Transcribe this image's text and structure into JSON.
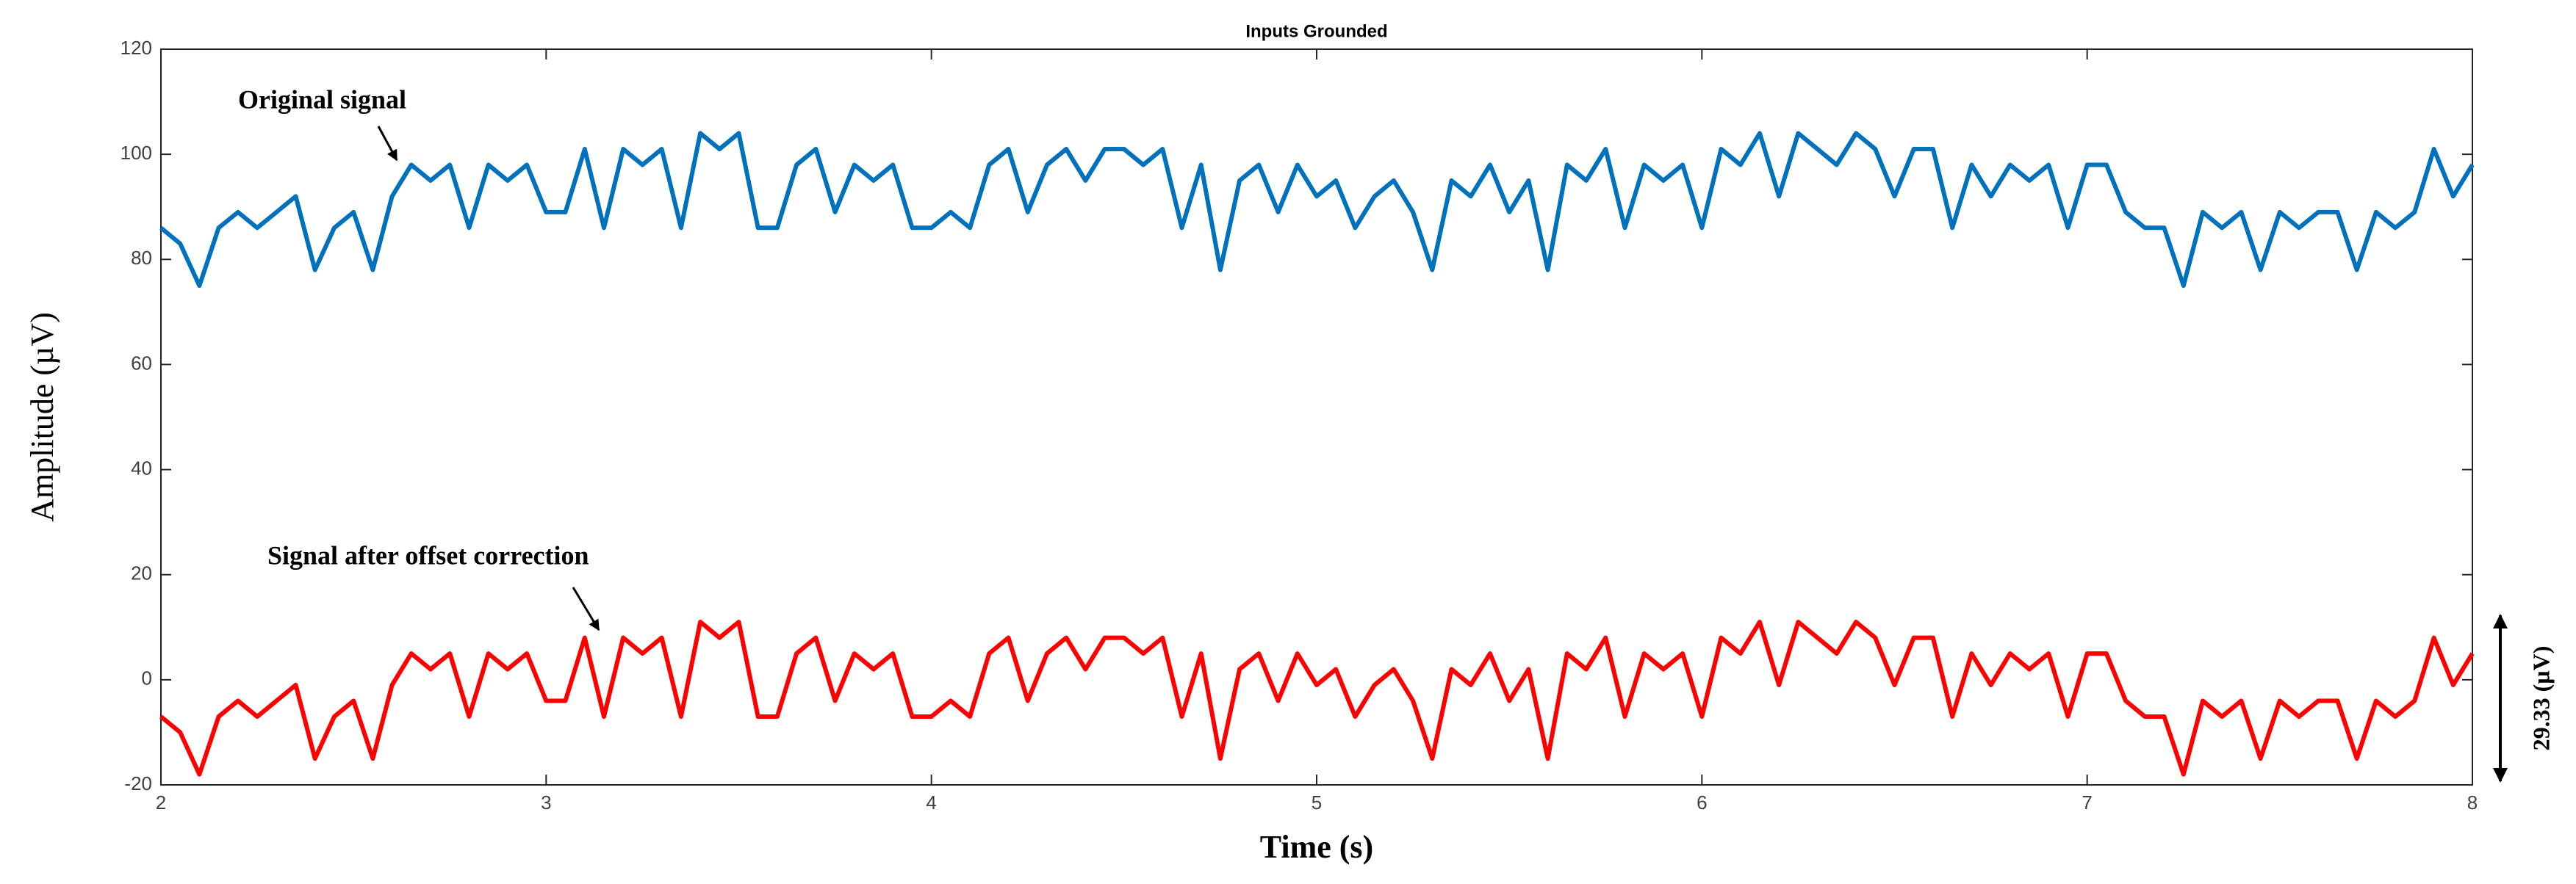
{
  "chart_data": {
    "type": "line",
    "title": "Inputs Grounded",
    "xlabel": "Time (s)",
    "ylabel": "Amplitude (µV)",
    "xlim": [
      2,
      8
    ],
    "xticks": [
      2,
      3,
      4,
      5,
      6,
      7,
      8
    ],
    "ylim": [
      -20,
      120
    ],
    "yticks": [
      -20,
      0,
      20,
      40,
      60,
      80,
      100,
      120
    ],
    "x": [
      2,
      2.05,
      2.1,
      2.15,
      2.2,
      2.25,
      2.3,
      2.35,
      2.4,
      2.45,
      2.5,
      2.55,
      2.6,
      2.65,
      2.7,
      2.75,
      2.8,
      2.85,
      2.9,
      2.95,
      3,
      3.05,
      3.1,
      3.15,
      3.2,
      3.25,
      3.3,
      3.35,
      3.4,
      3.45,
      3.5,
      3.55,
      3.6,
      3.65,
      3.7,
      3.75,
      3.8,
      3.85,
      3.9,
      3.95,
      4,
      4.05,
      4.1,
      4.15,
      4.2,
      4.25,
      4.3,
      4.35,
      4.4,
      4.45,
      4.5,
      4.55,
      4.6,
      4.65,
      4.7,
      4.75,
      4.8,
      4.85,
      4.9,
      4.95,
      5,
      5.05,
      5.1,
      5.15,
      5.2,
      5.25,
      5.3,
      5.35,
      5.4,
      5.45,
      5.5,
      5.55,
      5.6,
      5.65,
      5.7,
      5.75,
      5.8,
      5.85,
      5.9,
      5.95,
      6,
      6.05,
      6.1,
      6.15,
      6.2,
      6.25,
      6.3,
      6.35,
      6.4,
      6.45,
      6.5,
      6.55,
      6.6,
      6.65,
      6.7,
      6.75,
      6.8,
      6.85,
      6.9,
      6.95,
      7,
      7.05,
      7.1,
      7.15,
      7.2,
      7.25,
      7.3,
      7.35,
      7.4,
      7.45,
      7.5,
      7.55,
      7.6,
      7.65,
      7.7,
      7.75,
      7.8,
      7.85,
      7.9,
      7.95,
      8
    ],
    "series": [
      {
        "color": "#0072bd",
        "values": [
          86,
          83,
          75,
          86,
          89,
          86,
          89,
          92,
          78,
          86,
          89,
          78,
          92,
          98,
          95,
          98,
          86,
          98,
          95,
          98,
          89,
          89,
          101,
          86,
          101,
          98,
          101,
          86,
          104,
          101,
          104,
          86,
          86,
          98,
          101,
          89,
          98,
          95,
          98,
          86,
          86,
          89,
          86,
          98,
          101,
          89,
          98,
          101,
          95,
          101,
          101,
          98,
          101,
          86,
          98,
          78,
          95,
          98,
          89,
          98,
          92,
          95,
          86,
          92,
          95,
          89,
          78,
          95,
          92,
          98,
          89,
          95,
          78,
          98,
          95,
          101,
          86,
          98,
          95,
          98,
          86,
          101,
          98,
          104,
          92,
          104,
          101,
          98,
          104,
          101,
          92,
          101,
          101,
          86,
          98,
          92,
          98,
          95,
          98,
          86,
          98,
          98,
          89,
          86,
          86,
          75,
          89,
          86,
          89,
          78,
          89,
          86,
          89,
          89,
          78,
          89,
          86,
          89,
          101,
          92,
          98
        ]
      },
      {
        "color": "#ff0000",
        "values": [
          -7,
          -10,
          -18,
          -7,
          -4,
          -7,
          -4,
          -1,
          -15,
          -7,
          -4,
          -15,
          -1,
          5,
          2,
          5,
          -7,
          5,
          2,
          5,
          -4,
          -4,
          8,
          -7,
          8,
          5,
          8,
          -7,
          11,
          8,
          11,
          -7,
          -7,
          5,
          8,
          -4,
          5,
          2,
          5,
          -7,
          -7,
          -4,
          -7,
          5,
          8,
          -4,
          5,
          8,
          2,
          8,
          8,
          5,
          8,
          -7,
          5,
          -15,
          2,
          5,
          -4,
          5,
          -1,
          2,
          -7,
          -1,
          2,
          -4,
          -15,
          2,
          -1,
          5,
          -4,
          2,
          -15,
          5,
          2,
          8,
          -7,
          5,
          2,
          5,
          -7,
          8,
          5,
          11,
          -1,
          11,
          8,
          5,
          11,
          8,
          -1,
          8,
          8,
          -7,
          5,
          -1,
          5,
          2,
          5,
          -7,
          5,
          5,
          -4,
          -7,
          -7,
          -18,
          -4,
          -7,
          -4,
          -15,
          -4,
          -7,
          -4,
          -4,
          -15,
          -4,
          -7,
          -4,
          8,
          -1,
          5
        ]
      }
    ],
    "annotations": [
      "Original signal",
      "Signal after offset correction",
      "29.33 (µV)"
    ]
  }
}
